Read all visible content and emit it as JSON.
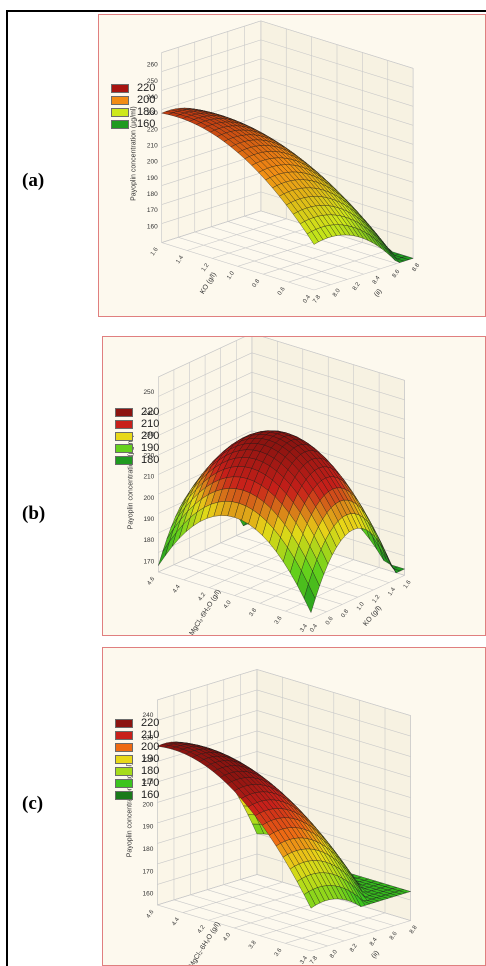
{
  "panels": [
    {
      "label": "(a)"
    },
    {
      "label": "(b)"
    },
    {
      "label": "(c)"
    }
  ],
  "chart_data": [
    {
      "type": "surface",
      "z_axis_label": "Payoplin concentration (µg/ml)",
      "x_axis_label": "KO (g/l)",
      "y_axis_label": "(ii)",
      "x_ticks": [
        "1.6",
        "1.4",
        "1.2",
        "1.0",
        "0.8",
        "0.6",
        "0.4"
      ],
      "y_ticks": [
        "7.8",
        "8.0",
        "8.2",
        "8.4",
        "8.6",
        "8.8"
      ],
      "z_ticks": [
        "160",
        "170",
        "180",
        "190",
        "200",
        "210",
        "220",
        "230",
        "240",
        "250",
        "260"
      ],
      "zlim": [
        150,
        260
      ],
      "legend": [
        "220",
        "200",
        "180",
        "160"
      ],
      "legend_colors": [
        "#a81410",
        "#f28c14",
        "#cde81a",
        "#1f9a1f"
      ],
      "surface_peak": 232,
      "surface_min": 150
    },
    {
      "type": "surface",
      "z_axis_label": "Payoplin concentration (µg/ml)",
      "x_axis_label": "MgCl₂·6H₂O (g/l)",
      "y_axis_label": "KO (g/l)",
      "x_ticks": [
        "4.6",
        "4.4",
        "4.2",
        "4.0",
        "3.8",
        "3.6",
        "3.4"
      ],
      "y_ticks": [
        "0.4",
        "0.6",
        "0.8",
        "1.0",
        "1.2",
        "1.4",
        "1.6"
      ],
      "z_ticks": [
        "170",
        "180",
        "190",
        "200",
        "210",
        "220",
        "230",
        "240",
        "250"
      ],
      "zlim": [
        165,
        250
      ],
      "legend": [
        "220",
        "210",
        "200",
        "190",
        "180"
      ],
      "legend_colors": [
        "#8c1410",
        "#c8201a",
        "#e8d818",
        "#66d21c",
        "#1f9a1f"
      ],
      "surface_peak": 232,
      "surface_min": 168
    },
    {
      "type": "surface",
      "z_axis_label": "Payoplin concentration (µg/ml)",
      "x_axis_label": "MgCl₂·6H₂O (g/l)",
      "y_axis_label": "(ii)",
      "x_ticks": [
        "4.6",
        "4.4",
        "4.2",
        "4.0",
        "3.8",
        "3.6",
        "3.4"
      ],
      "y_ticks": [
        "7.8",
        "8.0",
        "8.2",
        "8.4",
        "8.6",
        "8.8"
      ],
      "z_ticks": [
        "160",
        "170",
        "180",
        "190",
        "200",
        "210",
        "220",
        "230",
        "240"
      ],
      "zlim": [
        155,
        240
      ],
      "legend": [
        "220",
        "210",
        "200",
        "190",
        "180",
        "170",
        "160"
      ],
      "legend_colors": [
        "#8c1410",
        "#c8201a",
        "#ee6a14",
        "#e8d818",
        "#a6dc1a",
        "#3cc41e",
        "#1a7a1a"
      ],
      "surface_peak": 228,
      "surface_min": 168
    }
  ]
}
